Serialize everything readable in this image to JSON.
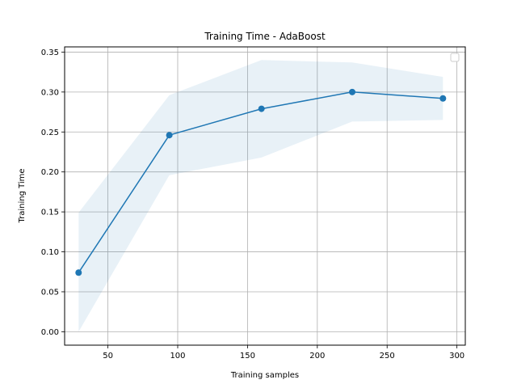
{
  "chart_data": {
    "type": "line",
    "title": "Training Time - AdaBoost",
    "xlabel": "Training samples",
    "ylabel": "Training Time",
    "xlim": [
      19,
      306
    ],
    "ylim": [
      -0.0168,
      0.3565
    ],
    "xticks": [
      50,
      100,
      150,
      200,
      250,
      300
    ],
    "yticks": [
      0.0,
      0.05,
      0.1,
      0.15,
      0.2,
      0.25,
      0.3,
      0.35
    ],
    "xtick_labels": [
      "50",
      "100",
      "150",
      "200",
      "250",
      "300"
    ],
    "ytick_labels": [
      "0.00",
      "0.05",
      "0.10",
      "0.15",
      "0.20",
      "0.25",
      "0.30",
      "0.35"
    ],
    "grid": true,
    "legend": "upper-right (empty)",
    "line_color": "#1f77b4",
    "band_color": "#1f77b4",
    "series": [
      {
        "x": [
          29,
          94,
          160,
          225,
          290
        ],
        "y": [
          0.074,
          0.246,
          0.279,
          0.3,
          0.292
        ],
        "band_upper": [
          0.149,
          0.296,
          0.34,
          0.337,
          0.319
        ],
        "band_lower": [
          0.0,
          0.196,
          0.218,
          0.263,
          0.265
        ]
      }
    ]
  }
}
